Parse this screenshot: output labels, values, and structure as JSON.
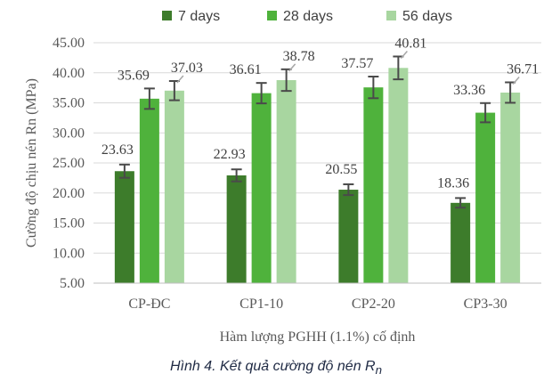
{
  "chart_data": {
    "type": "bar",
    "title": "",
    "categories": [
      "CP-ĐC",
      "CP1-10",
      "CP2-20",
      "CP3-30"
    ],
    "series": [
      {
        "name": "7 days",
        "color": "#3d7c2b",
        "values": [
          23.63,
          22.93,
          20.55,
          18.36
        ],
        "errors": [
          1.1,
          1.0,
          0.9,
          0.8
        ]
      },
      {
        "name": "28 days",
        "color": "#4fb23c",
        "values": [
          35.69,
          36.61,
          37.57,
          33.36
        ],
        "errors": [
          1.7,
          1.7,
          1.8,
          1.6
        ]
      },
      {
        "name": "56 days",
        "color": "#a8d6a0",
        "values": [
          37.03,
          38.78,
          40.81,
          36.71
        ],
        "errors": [
          1.6,
          1.8,
          1.9,
          1.7
        ]
      }
    ],
    "data_labels": [
      [
        "23.63",
        "22.93",
        "20.55",
        "18.36"
      ],
      [
        "35.69",
        "36.61",
        "37.57",
        "33.36"
      ],
      [
        "37.03",
        "38.78",
        "40.81",
        "36.71"
      ]
    ],
    "xlabel": "Hàm lượng PGHH (1.1%) cố định",
    "ylabel": "Cường độ chịu nén Rn (MPa)",
    "ylim": [
      5,
      45
    ],
    "yticks": [
      "5.00",
      "10.00",
      "15.00",
      "20.00",
      "25.00",
      "30.00",
      "35.00",
      "40.00",
      "45.00"
    ],
    "grid": true,
    "legend_position": "top",
    "error_bar_color": "#4a4a4a"
  },
  "caption": {
    "prefix": "Hình 4. Kết quả cường độ nén R",
    "subscript": "n"
  }
}
